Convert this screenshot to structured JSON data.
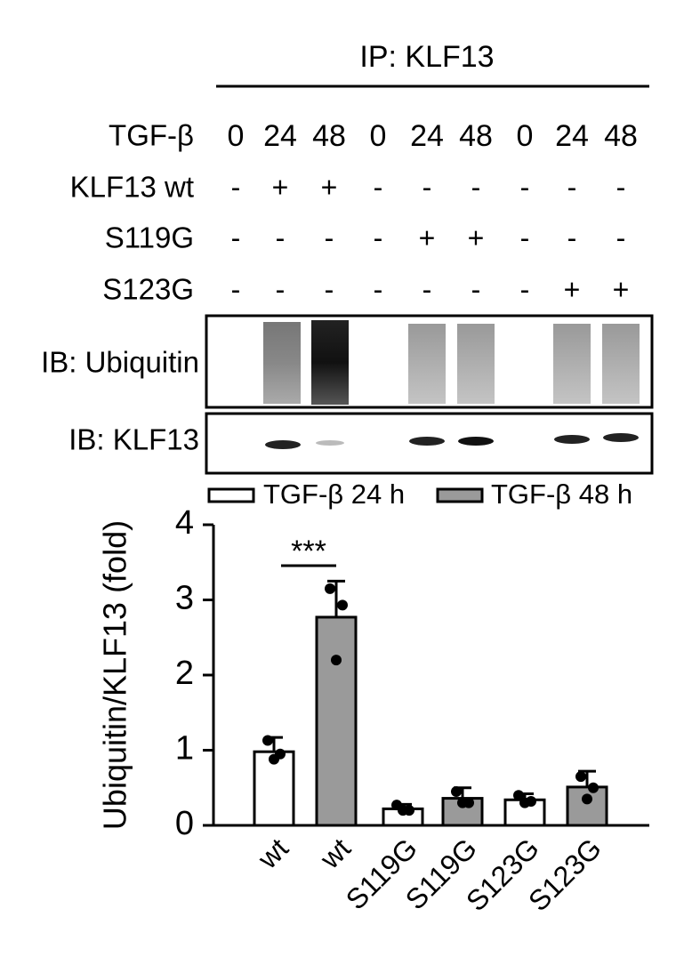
{
  "blot": {
    "ip": "IP: KLF13",
    "rows": [
      {
        "label": "TGF-β",
        "marks": [
          "0",
          "24",
          "48",
          "0",
          "24",
          "48",
          "0",
          "24",
          "48"
        ]
      },
      {
        "label": "KLF13 wt",
        "marks": [
          "-",
          "+",
          "+",
          "-",
          "-",
          "-",
          "-",
          "-",
          "-"
        ]
      },
      {
        "label": "S119G",
        "marks": [
          "-",
          "-",
          "-",
          "-",
          "+",
          "+",
          "-",
          "-",
          "-"
        ]
      },
      {
        "label": "S123G",
        "marks": [
          "-",
          "-",
          "-",
          "-",
          "-",
          "-",
          "-",
          "+",
          "+"
        ]
      }
    ],
    "panels": [
      "IB: Ubiquitin",
      "IB: KLF13"
    ]
  },
  "chart_data": {
    "type": "bar",
    "y_label": "Ubiquitin/KLF13 (fold)",
    "categories": [
      "wt",
      "wt",
      "S119G",
      "S119G",
      "S123G",
      "S123G"
    ],
    "series": [
      {
        "name": "TGF-β 24 h",
        "color": "#ffffff",
        "values": [
          0.98,
          null,
          0.22,
          null,
          0.34,
          null
        ],
        "errors": [
          0.19,
          null,
          0.06,
          null,
          0.08,
          null
        ],
        "points": [
          [
            1.13,
            0.95,
            0.88
          ],
          null,
          [
            0.27,
            0.2,
            0.2
          ],
          null,
          [
            0.4,
            0.32,
            0.3
          ],
          null
        ]
      },
      {
        "name": "TGF-β 48 h",
        "color": "#9a9a9a",
        "values": [
          null,
          2.77,
          null,
          0.36,
          null,
          0.51
        ],
        "errors": [
          null,
          0.48,
          null,
          0.14,
          null,
          0.21
        ],
        "points": [
          null,
          [
            3.15,
            2.93,
            2.2
          ],
          null,
          [
            0.45,
            0.3,
            0.3
          ],
          null,
          [
            0.65,
            0.5,
            0.35
          ]
        ]
      }
    ],
    "annotations": [
      "***"
    ],
    "ylim": [
      0,
      4
    ],
    "yticks": [
      0,
      1,
      2,
      3,
      4
    ]
  }
}
